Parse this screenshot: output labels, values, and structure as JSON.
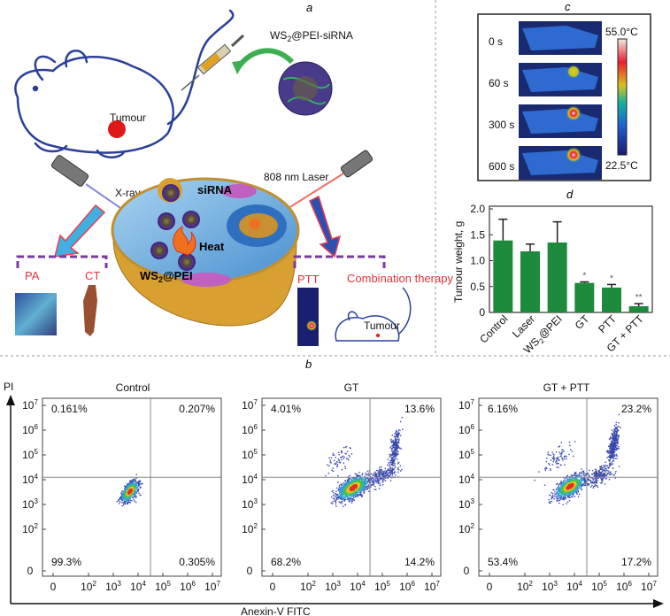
{
  "panel_labels": {
    "a": "a",
    "b": "b",
    "c": "c",
    "d": "d"
  },
  "panel_a": {
    "injection_label": "WS2@PEI-siRNA",
    "tumour_label": "Tumour",
    "xray_label": "X-ray",
    "laser_label": "808 nm Laser",
    "sirna_label": "siRNA",
    "heat_label": "Heat",
    "particle_label": "WS2@PEI",
    "imaging_modes": [
      "PA",
      "CT"
    ],
    "therapy_modes": [
      "PTT",
      "Combination therapy"
    ],
    "therapy_tumour_label": "Tumour",
    "icons": [
      "mouse-icon",
      "syringe-icon",
      "nanoparticle-icon",
      "xray-source-icon",
      "laser-source-icon",
      "cell-icon",
      "flame-icon"
    ]
  },
  "panel_c": {
    "times": [
      "0 s",
      "60 s",
      "300 s",
      "600 s"
    ],
    "hotspot_level": [
      0,
      0.6,
      0.9,
      0.95
    ],
    "colorbar_max": "55.0°C",
    "colorbar_min": "22.5°C"
  },
  "chart_data": [
    {
      "type": "bar",
      "panel": "d",
      "ylabel": "Tumour weight, g",
      "categories": [
        "Control",
        "Laser",
        "WS2@PEI",
        "GT",
        "PTT",
        "GT + PTT"
      ],
      "values": [
        1.39,
        1.18,
        1.35,
        0.57,
        0.48,
        0.12
      ],
      "errors": [
        0.41,
        0.14,
        0.4,
        0.02,
        0.06,
        0.05
      ],
      "significance": [
        "",
        "",
        "",
        "*",
        "*",
        "**"
      ],
      "ylim": [
        0,
        2.0
      ],
      "yticks": [
        "0",
        "0.5",
        "1.0",
        "1.5",
        "2.0"
      ],
      "bar_color": "#1e8a3c",
      "grid": false
    },
    {
      "type": "scatter",
      "panel": "b",
      "xlabel": "Anexin-V FITC",
      "ylabel": "PI",
      "xscale": "log",
      "yscale": "log",
      "xticks": [
        "0",
        "10^2",
        "10^3",
        "10^4",
        "10^5",
        "10^6",
        "10^7"
      ],
      "yticks": [
        "0",
        "10^2",
        "10^3",
        "10^4",
        "10^5",
        "10^6",
        "10^7"
      ],
      "plots": [
        {
          "title": "Control",
          "quadrants": {
            "upper_left": "0.161%",
            "upper_right": "0.207%",
            "lower_left": "99.3%",
            "lower_right": "0.305%"
          }
        },
        {
          "title": "GT",
          "quadrants": {
            "upper_left": "4.01%",
            "upper_right": "13.6%",
            "lower_left": "68.2%",
            "lower_right": "14.2%"
          }
        },
        {
          "title": "GT + PTT",
          "quadrants": {
            "upper_left": "6.16%",
            "upper_right": "23.2%",
            "lower_left": "53.4%",
            "lower_right": "17.2%"
          }
        }
      ]
    }
  ]
}
